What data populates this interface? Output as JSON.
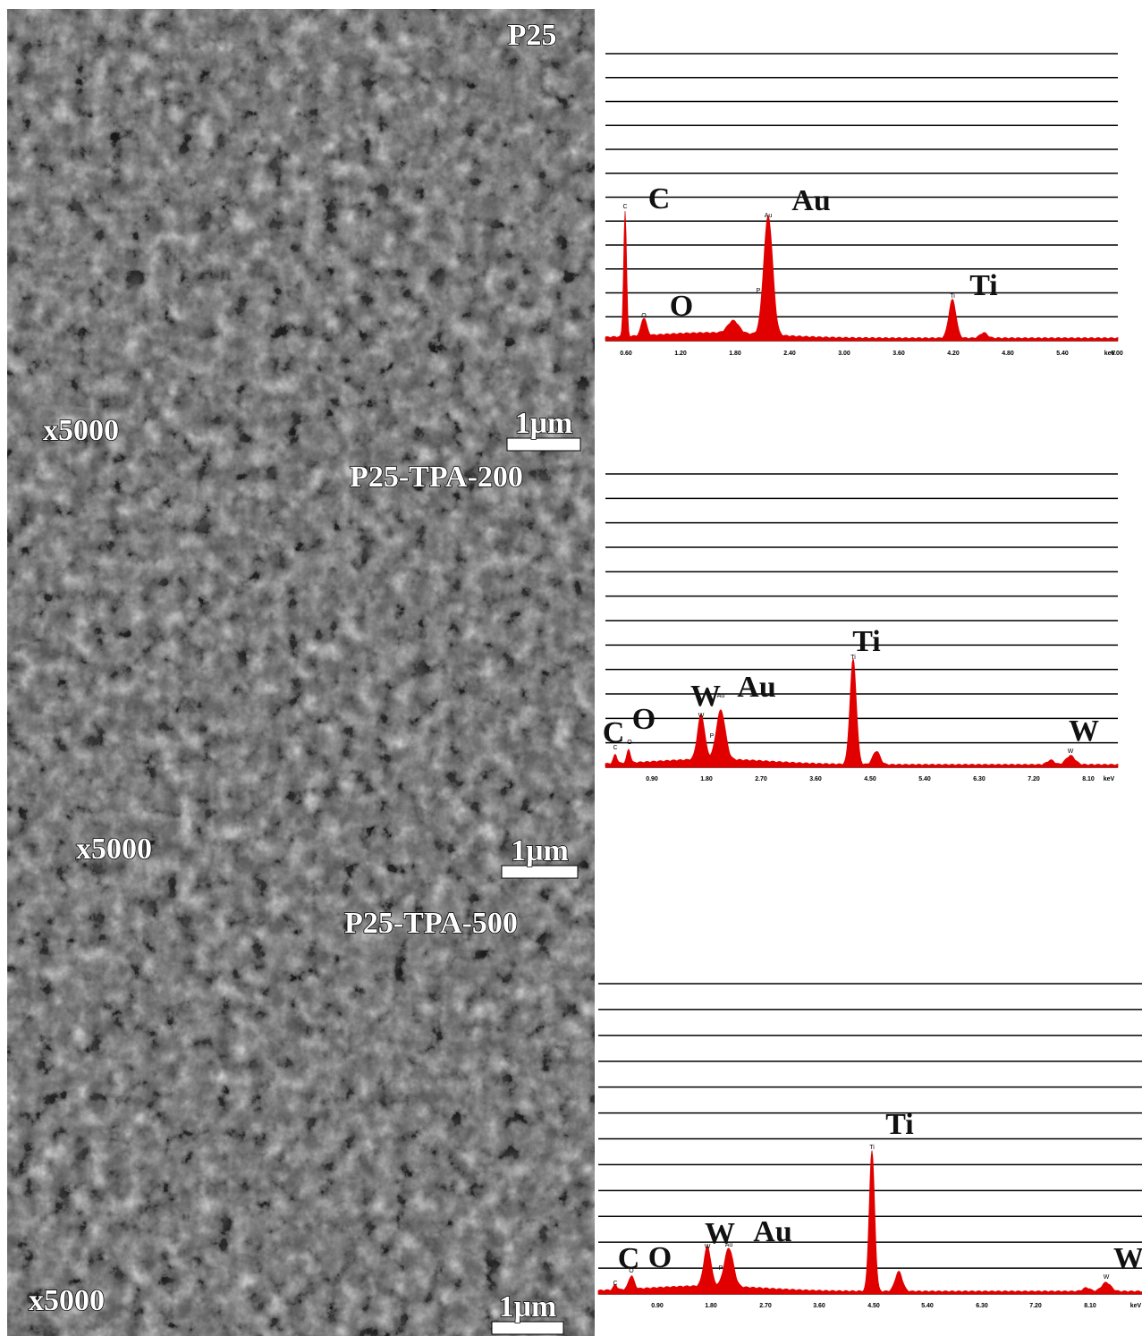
{
  "panels": [
    {
      "sample": "P25",
      "magnification": "x5000",
      "scale_bar": "1μm",
      "spectrum": {
        "x_tick_labels": [
          "0.60",
          "1.20",
          "1.80",
          "2.40",
          "3.00",
          "3.60",
          "4.20",
          "4.80",
          "5.40",
          "6.00",
          "keV"
        ],
        "elements": [
          "C",
          "Au",
          "O",
          "Ti"
        ],
        "peak_markers": [
          "C",
          "O",
          "Au",
          "P",
          "Ti"
        ]
      }
    },
    {
      "sample": "P25-TPA-200",
      "magnification": "x5000",
      "scale_bar": "1μm",
      "spectrum": {
        "x_tick_labels": [
          "0.90",
          "1.80",
          "2.70",
          "3.60",
          "4.50",
          "5.40",
          "6.30",
          "7.20",
          "8.10",
          "keV"
        ],
        "elements": [
          "C",
          "O",
          "W",
          "Au",
          "Ti",
          "W"
        ],
        "peak_markers": [
          "C",
          "O",
          "W",
          "Au",
          "P",
          "Ti",
          "W"
        ]
      }
    },
    {
      "sample": "P25-TPA-500",
      "magnification": "x5000",
      "scale_bar": "1μm",
      "spectrum": {
        "x_tick_labels": [
          "0.90",
          "1.80",
          "2.70",
          "3.60",
          "4.50",
          "5.40",
          "6.30",
          "7.20",
          "8.10",
          "keV"
        ],
        "elements": [
          "C",
          "O",
          "W",
          "Au",
          "Ti",
          "W"
        ],
        "peak_markers": [
          "C",
          "O",
          "W",
          "Au",
          "P",
          "Ti",
          "W"
        ]
      }
    }
  ]
}
